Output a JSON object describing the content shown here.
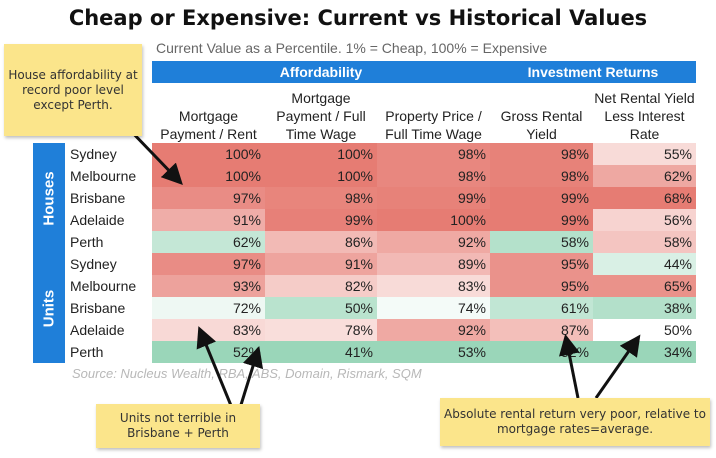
{
  "title": "Cheap or Expensive: Current vs Historical Values",
  "subtitle": "Current Value as a Percentile. 1% = Cheap, 100% = Expensive",
  "source": "Source: Nucleus Wealth, RBA, ABS, Domain, Rismark, SQM",
  "colors": {
    "header_blue": "#1f7fd9",
    "high": "#e67c73",
    "mid": "#ffffff",
    "low": "#57bb8a",
    "note_yellow": "#fbe58b"
  },
  "notes": {
    "house": "House affordability at record poor level except Perth.",
    "units": "Units not terrible in Brisbane + Perth",
    "rental": "Absolute rental return very poor, relative to mortgage rates=average."
  },
  "chart_data": {
    "type": "heatmap",
    "title": "Cheap or Expensive: Current vs Historical Values",
    "subtitle": "Current Value as a Percentile. 1% = Cheap, 100% = Expensive",
    "unit": "%",
    "column_groups": [
      {
        "name": "Affordability",
        "span": 3
      },
      {
        "name": "Investment Returns",
        "span": 2
      }
    ],
    "columns": [
      "Mortgage Payment / Rent",
      "Mortgage Payment / Full Time Wage",
      "Property Price / Full Time Wage",
      "Gross Rental Yield",
      "Net Rental Yield Less Interest Rate"
    ],
    "row_groups": [
      {
        "name": "Houses",
        "rows": [
          {
            "city": "Sydney",
            "values": [
              100,
              100,
              98,
              98,
              55
            ]
          },
          {
            "city": "Melbourne",
            "values": [
              100,
              100,
              98,
              98,
              62
            ]
          },
          {
            "city": "Brisbane",
            "values": [
              97,
              98,
              99,
              99,
              68
            ]
          },
          {
            "city": "Adelaide",
            "values": [
              91,
              99,
              100,
              99,
              56
            ]
          },
          {
            "city": "Perth",
            "values": [
              62,
              86,
              92,
              58,
              58
            ]
          }
        ]
      },
      {
        "name": "Units",
        "rows": [
          {
            "city": "Sydney",
            "values": [
              97,
              91,
              89,
              95,
              44
            ]
          },
          {
            "city": "Melbourne",
            "values": [
              93,
              82,
              83,
              95,
              65
            ]
          },
          {
            "city": "Brisbane",
            "values": [
              72,
              50,
              74,
              61,
              38
            ]
          },
          {
            "city": "Adelaide",
            "values": [
              83,
              78,
              92,
              87,
              50
            ]
          },
          {
            "city": "Perth",
            "values": [
              52,
              41,
              53,
              52,
              34
            ]
          }
        ]
      }
    ]
  }
}
